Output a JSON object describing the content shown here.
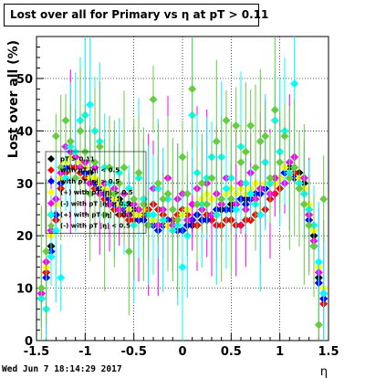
{
  "chart_data": {
    "type": "scatter",
    "title": "Lost over all for Primary vs   η at pT > 0.11",
    "xlabel": "η",
    "ylabel": "Lost over all (%)",
    "xlim": [
      -1.5,
      1.5
    ],
    "ylim": [
      0,
      58
    ],
    "xticks": [
      -1.5,
      -1,
      -0.5,
      0,
      0.5,
      1,
      1.5
    ],
    "yticks": [
      0,
      10,
      20,
      30,
      40,
      50
    ],
    "grid": true,
    "legend_position": "top-left",
    "legend": [
      {
        "label": "pT > 0.11",
        "color": "#000000"
      },
      {
        "label": "with pT |η| < 0.5",
        "color": "#ff0000"
      },
      {
        "label": "with pT |η| > 0.5",
        "color": "#0000ff"
      },
      {
        "label": "(+) with pT |η| > 0.5",
        "color": "#ffff00"
      },
      {
        "label": "(-) with pT |η| > 0.5",
        "color": "#ff00ff"
      },
      {
        "label": "(+) with pT |η| < 0.5",
        "color": "#00ffff"
      },
      {
        "label": "(-) with pT |η| < 0.5",
        "color": "#66cc44"
      }
    ],
    "series": [
      {
        "color": "#000000",
        "x": [
          -1.45,
          -1.4,
          -1.35,
          -1.3,
          -1.25,
          -1.2,
          -1.15,
          -1.1,
          -1.05,
          -1.0,
          -0.95,
          -0.9,
          -0.85,
          -0.8,
          -0.75,
          -0.7,
          -0.65,
          -0.6,
          -0.55,
          -0.5,
          -0.45,
          -0.4,
          -0.35,
          -0.3,
          -0.25,
          -0.2,
          -0.15,
          -0.1,
          -0.05,
          0.0,
          0.05,
          0.1,
          0.15,
          0.2,
          0.25,
          0.3,
          0.35,
          0.4,
          0.45,
          0.5,
          0.55,
          0.6,
          0.65,
          0.7,
          0.75,
          0.8,
          0.85,
          0.9,
          0.95,
          1.0,
          1.05,
          1.1,
          1.15,
          1.2,
          1.25,
          1.3,
          1.35,
          1.4,
          1.45
        ],
        "y": [
          8,
          13,
          18,
          24,
          30,
          33,
          35,
          35,
          34,
          33,
          32,
          31,
          30,
          29,
          28,
          27,
          27,
          26,
          26,
          25,
          25,
          24,
          24,
          23,
          22,
          22,
          22,
          21,
          21,
          21,
          22,
          22,
          22,
          23,
          23,
          24,
          24,
          25,
          25,
          26,
          26,
          27,
          27,
          28,
          28,
          29,
          29,
          30,
          31,
          31,
          32,
          33,
          33,
          32,
          30,
          25,
          20,
          12,
          8
        ]
      },
      {
        "color": "#ff0000",
        "x": [
          -1.45,
          -1.4,
          -1.35,
          -1.3,
          -1.25,
          -1.2,
          -1.15,
          -1.1,
          -1.05,
          -1.0,
          -0.95,
          -0.9,
          -0.85,
          -0.8,
          -0.75,
          -0.7,
          -0.65,
          -0.6,
          -0.55,
          -0.5,
          -0.45,
          -0.4,
          -0.35,
          -0.3,
          -0.25,
          -0.2,
          -0.15,
          -0.1,
          -0.05,
          0.0,
          0.05,
          0.1,
          0.15,
          0.2,
          0.25,
          0.3,
          0.35,
          0.4,
          0.45,
          0.5,
          0.55,
          0.6,
          0.65,
          0.7,
          0.75,
          0.8,
          0.85,
          0.9,
          0.95,
          1.0,
          1.05,
          1.1,
          1.15,
          1.2,
          1.25,
          1.3,
          1.35,
          1.4,
          1.45
        ],
        "y": [
          9,
          13,
          17,
          23,
          29,
          32,
          33,
          33,
          32,
          31,
          30,
          29,
          28,
          27,
          26,
          25,
          24,
          24,
          23,
          23,
          23,
          24,
          25,
          26,
          25,
          24,
          23,
          23,
          24,
          25,
          24,
          23,
          22,
          23,
          24,
          23,
          22,
          22,
          23,
          23,
          22,
          22,
          23,
          23,
          24,
          24,
          25,
          27,
          28,
          29,
          30,
          31,
          32,
          31,
          29,
          24,
          18,
          11,
          7
        ]
      },
      {
        "color": "#0000ff",
        "x": [
          -1.45,
          -1.4,
          -1.35,
          -1.3,
          -1.25,
          -1.2,
          -1.15,
          -1.1,
          -1.05,
          -1.0,
          -0.95,
          -0.9,
          -0.85,
          -0.8,
          -0.75,
          -0.7,
          -0.65,
          -0.6,
          -0.55,
          -0.5,
          -0.45,
          -0.4,
          -0.35,
          -0.3,
          -0.25,
          -0.2,
          -0.15,
          -0.1,
          -0.05,
          0.0,
          0.05,
          0.1,
          0.15,
          0.2,
          0.25,
          0.3,
          0.35,
          0.4,
          0.45,
          0.5,
          0.55,
          0.6,
          0.65,
          0.7,
          0.75,
          0.8,
          0.85,
          0.9,
          0.95,
          1.0,
          1.05,
          1.1,
          1.15,
          1.2,
          1.25,
          1.3,
          1.35,
          1.4,
          1.45
        ],
        "y": [
          8,
          12,
          17,
          24,
          30,
          33,
          35,
          35,
          34,
          32,
          31,
          30,
          29,
          28,
          27,
          26,
          26,
          25,
          25,
          24,
          23,
          23,
          22,
          22,
          21,
          22,
          23,
          22,
          21,
          21,
          22,
          23,
          24,
          23,
          23,
          24,
          25,
          26,
          25,
          25,
          26,
          27,
          26,
          27,
          28,
          28,
          29,
          30,
          30,
          31,
          32,
          32,
          31,
          30,
          28,
          23,
          18,
          11,
          8
        ]
      },
      {
        "color": "#ffff00",
        "x": [
          -1.45,
          -1.4,
          -1.35,
          -1.3,
          -1.25,
          -1.2,
          -1.15,
          -1.1,
          -1.05,
          -1.0,
          -0.95,
          -0.9,
          -0.85,
          -0.8,
          -0.75,
          -0.7,
          -0.65,
          -0.6,
          -0.55,
          -0.5,
          -0.45,
          -0.4,
          -0.35,
          -0.3,
          -0.25,
          -0.2,
          -0.15,
          -0.1,
          -0.05,
          0.0,
          0.05,
          0.1,
          0.15,
          0.2,
          0.25,
          0.3,
          0.35,
          0.4,
          0.45,
          0.5,
          0.55,
          0.6,
          0.65,
          0.7,
          0.75,
          0.8,
          0.85,
          0.9,
          0.95,
          1.0,
          1.05,
          1.1,
          1.15,
          1.2,
          1.25,
          1.3,
          1.35,
          1.4,
          1.45
        ],
        "y": [
          10,
          14,
          20,
          26,
          31,
          34,
          35,
          36,
          34,
          33,
          31,
          31,
          30,
          29,
          28,
          27,
          26,
          26,
          25,
          24,
          24,
          25,
          24,
          23,
          22,
          23,
          22,
          21,
          22,
          24,
          25,
          26,
          26,
          27,
          28,
          27,
          28,
          27,
          28,
          29,
          28,
          29,
          28,
          29,
          30,
          29,
          30,
          31,
          30,
          31,
          33,
          32,
          33,
          31,
          29,
          26,
          21,
          14,
          10
        ]
      },
      {
        "color": "#ff00ff",
        "x": [
          -1.45,
          -1.4,
          -1.35,
          -1.3,
          -1.25,
          -1.2,
          -1.15,
          -1.1,
          -1.05,
          -1.0,
          -0.95,
          -0.9,
          -0.85,
          -0.8,
          -0.75,
          -0.7,
          -0.65,
          -0.6,
          -0.55,
          -0.5,
          -0.45,
          -0.4,
          -0.35,
          -0.3,
          -0.25,
          -0.2,
          -0.15,
          -0.1,
          -0.05,
          0.0,
          0.05,
          0.1,
          0.15,
          0.2,
          0.25,
          0.3,
          0.35,
          0.4,
          0.45,
          0.5,
          0.55,
          0.6,
          0.65,
          0.7,
          0.75,
          0.8,
          0.85,
          0.9,
          0.95,
          1.0,
          1.05,
          1.1,
          1.15,
          1.2,
          1.25,
          1.3,
          1.35,
          1.4,
          1.45
        ],
        "y": [
          9,
          15,
          21,
          27,
          32,
          37,
          36,
          35,
          33,
          34,
          30,
          33,
          28,
          30,
          26,
          29,
          25,
          28,
          24,
          26,
          25,
          27,
          24,
          29,
          22,
          25,
          31,
          22,
          27,
          28,
          23,
          26,
          29,
          25,
          30,
          24,
          28,
          26,
          31,
          27,
          26,
          30,
          25,
          32,
          27,
          29,
          34,
          28,
          31,
          36,
          30,
          34,
          35,
          29,
          31,
          24,
          19,
          13,
          9
        ]
      },
      {
        "color": "#00ffff",
        "x": [
          -1.45,
          -1.4,
          -1.35,
          -1.3,
          -1.25,
          -1.2,
          -1.15,
          -1.1,
          -1.05,
          -1.0,
          -0.95,
          -0.9,
          -0.85,
          -0.8,
          -0.75,
          -0.7,
          -0.65,
          -0.6,
          -0.55,
          -0.5,
          -0.45,
          -0.4,
          -0.35,
          -0.3,
          -0.25,
          -0.2,
          -0.15,
          -0.1,
          -0.05,
          0.0,
          0.05,
          0.1,
          0.15,
          0.2,
          0.25,
          0.3,
          0.35,
          0.4,
          0.45,
          0.5,
          0.55,
          0.6,
          0.65,
          0.7,
          0.75,
          0.8,
          0.85,
          0.9,
          0.95,
          1.0,
          1.05,
          1.1,
          1.15,
          1.2,
          1.25,
          1.3,
          1.35,
          1.4,
          1.45
        ],
        "y": [
          8,
          6,
          16,
          21,
          12,
          31,
          37,
          36,
          42,
          43,
          45,
          40,
          38,
          33,
          30,
          28,
          32,
          26,
          29,
          22,
          31,
          27,
          24,
          24,
          29,
          23,
          27,
          21,
          22,
          14,
          20,
          43,
          32,
          26,
          31,
          35,
          24,
          35,
          29,
          31,
          25,
          37,
          30,
          28,
          26,
          24,
          34,
          30,
          42,
          36,
          40,
          32,
          49,
          30,
          28,
          25,
          22,
          15,
          9
        ]
      },
      {
        "color": "#66cc44",
        "x": [
          -1.45,
          -1.4,
          -1.35,
          -1.3,
          -1.25,
          -1.2,
          -1.15,
          -1.1,
          -1.05,
          -1.0,
          -0.95,
          -0.9,
          -0.85,
          -0.8,
          -0.75,
          -0.7,
          -0.65,
          -0.6,
          -0.55,
          -0.5,
          -0.45,
          -0.4,
          -0.35,
          -0.3,
          -0.25,
          -0.2,
          -0.15,
          -0.1,
          -0.05,
          0.0,
          0.05,
          0.1,
          0.15,
          0.2,
          0.25,
          0.3,
          0.35,
          0.4,
          0.45,
          0.5,
          0.55,
          0.6,
          0.65,
          0.7,
          0.75,
          0.8,
          0.85,
          0.9,
          0.95,
          1.0,
          1.05,
          1.1,
          1.15,
          1.2,
          1.25,
          1.3,
          1.35,
          1.4,
          1.45
        ],
        "y": [
          10,
          17,
          24,
          39,
          33,
          42,
          38,
          31,
          40,
          36,
          28,
          34,
          37,
          24,
          33,
          28,
          30,
          33,
          17,
          27,
          32,
          26,
          22,
          46,
          30,
          27,
          28,
          25,
          23,
          35,
          28,
          48,
          26,
          30,
          26,
          31,
          38,
          27,
          42,
          27,
          41,
          34,
          36,
          41,
          33,
          38,
          39,
          31,
          44,
          34,
          39,
          31,
          33,
          29,
          26,
          22,
          18,
          3,
          27
        ]
      }
    ]
  },
  "datestamp": "Wed Jun  7 18:14:29 2017"
}
